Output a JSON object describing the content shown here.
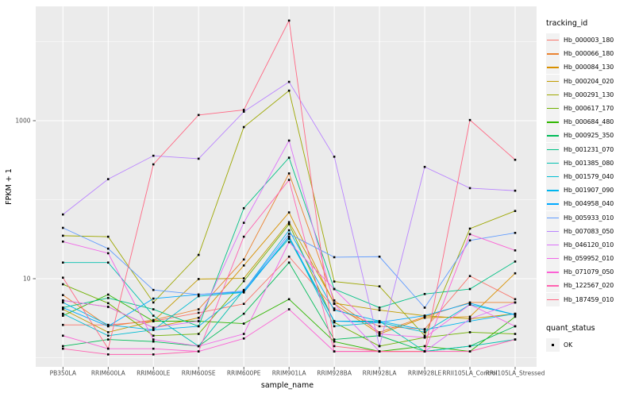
{
  "window": {
    "description": "ggplot2 line chart of FPKM + 1 per sample_name"
  },
  "axes": {
    "y_title": "FPKM + 1",
    "x_title": "sample_name",
    "y_tick_labels": [
      "1000",
      "10"
    ]
  },
  "legend": {
    "tracking_title": "tracking_id",
    "quant_title": "quant_status",
    "quant_items": [
      {
        "label": "OK",
        "marker": "black-square"
      }
    ]
  },
  "chart_data": {
    "type": "line",
    "title": "",
    "xlabel": "sample_name",
    "ylabel": "FPKM + 1",
    "y_scale": "log10",
    "y_major_breaks": [
      10,
      1000
    ],
    "y_minor_breaks": [
      1,
      100,
      10000
    ],
    "ylim": [
      0.77,
      28000
    ],
    "grid": true,
    "legend_position": "right",
    "panel_bg": "#EBEBEB",
    "grid_color": "#FFFFFF",
    "point_color": "#000000",
    "quant_status": "OK",
    "categories": [
      "PB350LA",
      "RRIM600LA",
      "RRIM600LE",
      "RRIM600SE",
      "RRIM600PE",
      "RRIM901LA",
      "RRIM928BA",
      "RRIM928LA",
      "RRIM928LE",
      "RRII105LA_Control",
      "RRII105LA_Stressed"
    ],
    "series": [
      {
        "name": "Hb_000003_180",
        "color": "#F8766D",
        "values": [
          2.6,
          2.6,
          2.9,
          3.7,
          4.8,
          19,
          4.2,
          2.5,
          2.3,
          10.8,
          5.5
        ]
      },
      {
        "name": "Hb_000066_180",
        "color": "#EA8331",
        "values": [
          6.2,
          2.5,
          3.0,
          4.1,
          17.5,
          215,
          5.3,
          2.1,
          3.3,
          5.0,
          5.0
        ]
      },
      {
        "name": "Hb_000084_130",
        "color": "#D89000",
        "values": [
          5.3,
          4.4,
          2.4,
          3.2,
          14.7,
          69,
          4.8,
          2.0,
          3.2,
          3.3,
          11.7
        ]
      },
      {
        "name": "Hb_000204_020",
        "color": "#C09B00",
        "values": [
          4.1,
          2.1,
          2.9,
          9.9,
          10.1,
          52,
          4.9,
          4.0,
          3.4,
          3.1,
          3.6
        ]
      },
      {
        "name": "Hb_000291_130",
        "color": "#9DA700",
        "values": [
          35,
          34,
          5.0,
          20,
          830,
          2400,
          9.2,
          8.0,
          1.9,
          43,
          72
        ]
      },
      {
        "name": "Hb_000617_170",
        "color": "#6FB000",
        "values": [
          8.5,
          4.9,
          1.9,
          2.0,
          9.3,
          49,
          2.8,
          1.4,
          1.8,
          2.1,
          2.0
        ]
      },
      {
        "name": "Hb_000684_480",
        "color": "#2FB600",
        "values": [
          3.4,
          6.3,
          2.9,
          2.9,
          2.7,
          5.5,
          1.6,
          1.2,
          1.4,
          1.2,
          3.3
        ]
      },
      {
        "name": "Hb_000925_350",
        "color": "#00BC59",
        "values": [
          1.4,
          1.7,
          1.6,
          1.4,
          3.6,
          16,
          1.7,
          1.9,
          1.2,
          1.4,
          2.5
        ]
      },
      {
        "name": "Hb_001231_070",
        "color": "#00C085",
        "values": [
          4.3,
          5.7,
          4.1,
          2.5,
          78,
          340,
          7.4,
          4.3,
          6.4,
          7.4,
          16.5
        ]
      },
      {
        "name": "Hb_001385_080",
        "color": "#00C0AF",
        "values": [
          16,
          16,
          3.4,
          1.4,
          7.2,
          32,
          2.9,
          2.9,
          1.2,
          1.4,
          1.7
        ]
      },
      {
        "name": "Hb_001579_040",
        "color": "#00BDD3",
        "values": [
          3.6,
          1.9,
          2.25,
          6.0,
          6.7,
          34,
          2.5,
          2.8,
          2.1,
          4.7,
          3.5
        ]
      },
      {
        "name": "Hb_001907_090",
        "color": "#00B5EE",
        "values": [
          5.0,
          2.6,
          2.25,
          2.5,
          7.0,
          41,
          4.0,
          2.9,
          2.25,
          2.9,
          3.6
        ]
      },
      {
        "name": "Hb_004958_040",
        "color": "#00A9FF",
        "values": [
          4.3,
          2.5,
          5.6,
          6.3,
          6.8,
          34,
          2.9,
          2.8,
          3.4,
          4.9,
          3.5
        ]
      },
      {
        "name": "Hb_005933_010",
        "color": "#619CFF",
        "values": [
          44,
          24,
          7.2,
          6.3,
          7.0,
          37,
          18.7,
          19,
          4.3,
          30.5,
          38
        ]
      },
      {
        "name": "Hb_007083_050",
        "color": "#B983FF",
        "values": [
          65,
          182,
          360,
          330,
          1300,
          3100,
          350,
          1.4,
          260,
          140,
          130
        ]
      },
      {
        "name": "Hb_046120_010",
        "color": "#DC71FA",
        "values": [
          5.3,
          4.4,
          2.4,
          2.9,
          51,
          560,
          4.8,
          1.2,
          1.2,
          3.1,
          5.0
        ]
      },
      {
        "name": "Hb_059952_010",
        "color": "#F166E8",
        "values": [
          29.5,
          21,
          1.7,
          1.4,
          2.0,
          29,
          7.4,
          2.0,
          1.8,
          4.7,
          2.5
        ]
      },
      {
        "name": "Hb_071079_050",
        "color": "#FC61D5",
        "values": [
          1.9,
          1.3,
          1.3,
          1.2,
          1.75,
          4.1,
          1.2,
          1.2,
          1.2,
          36.6,
          22.8
        ]
      },
      {
        "name": "Hb_122567_020",
        "color": "#FF62B0",
        "values": [
          1.3,
          1.1,
          1.1,
          1.2,
          34,
          178,
          1.2,
          1.2,
          1.2,
          1.2,
          1.7
        ]
      },
      {
        "name": "Hb_187459_010",
        "color": "#FF6884",
        "values": [
          10.3,
          1.3,
          280,
          1180,
          1370,
          18500,
          1.4,
          1.2,
          1.2,
          1020,
          320
        ]
      }
    ]
  }
}
